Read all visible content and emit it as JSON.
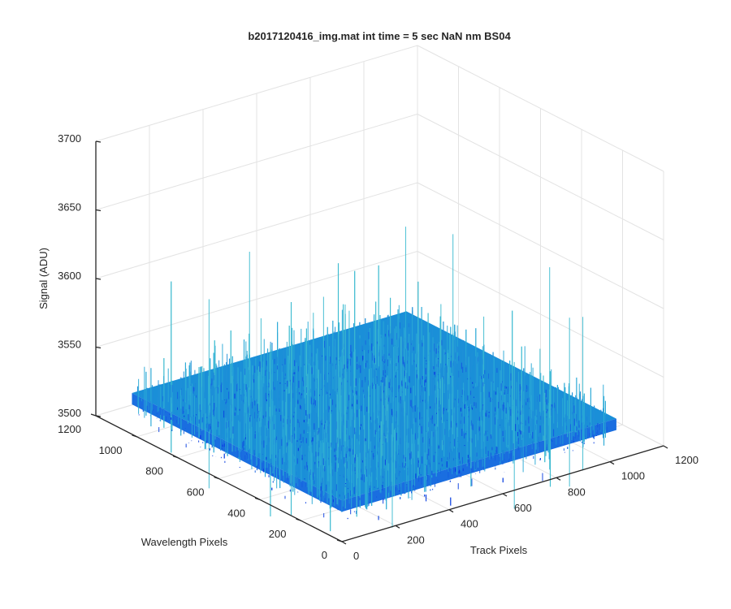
{
  "chart_data": {
    "type": "surface",
    "title": "b2017120416_img.mat int time = 5 sec  NaN nm BS04",
    "xlabel": "Track Pixels",
    "ylabel": "Wavelength Pixels",
    "zlabel": "Signal (ADU)",
    "xlim": [
      0,
      1200
    ],
    "ylim": [
      0,
      1200
    ],
    "zlim": [
      3500,
      3700
    ],
    "x_ticks": [
      "0",
      "200",
      "400",
      "600",
      "800",
      "1000",
      "1200"
    ],
    "y_ticks": [
      "0",
      "200",
      "400",
      "600",
      "800",
      "1000",
      "1200"
    ],
    "z_ticks": [
      "3500",
      "3550",
      "3600",
      "3650",
      "3700"
    ],
    "grid": true,
    "surface": {
      "x_range": [
        0,
        1024
      ],
      "y_range": [
        0,
        1024
      ],
      "mean_signal": 3530,
      "noise_range": [
        3495,
        3630
      ],
      "colormap": [
        "#0b3fe0",
        "#1560e0",
        "#1f8fd8",
        "#2aa9d6",
        "#3cbbd0"
      ]
    }
  }
}
